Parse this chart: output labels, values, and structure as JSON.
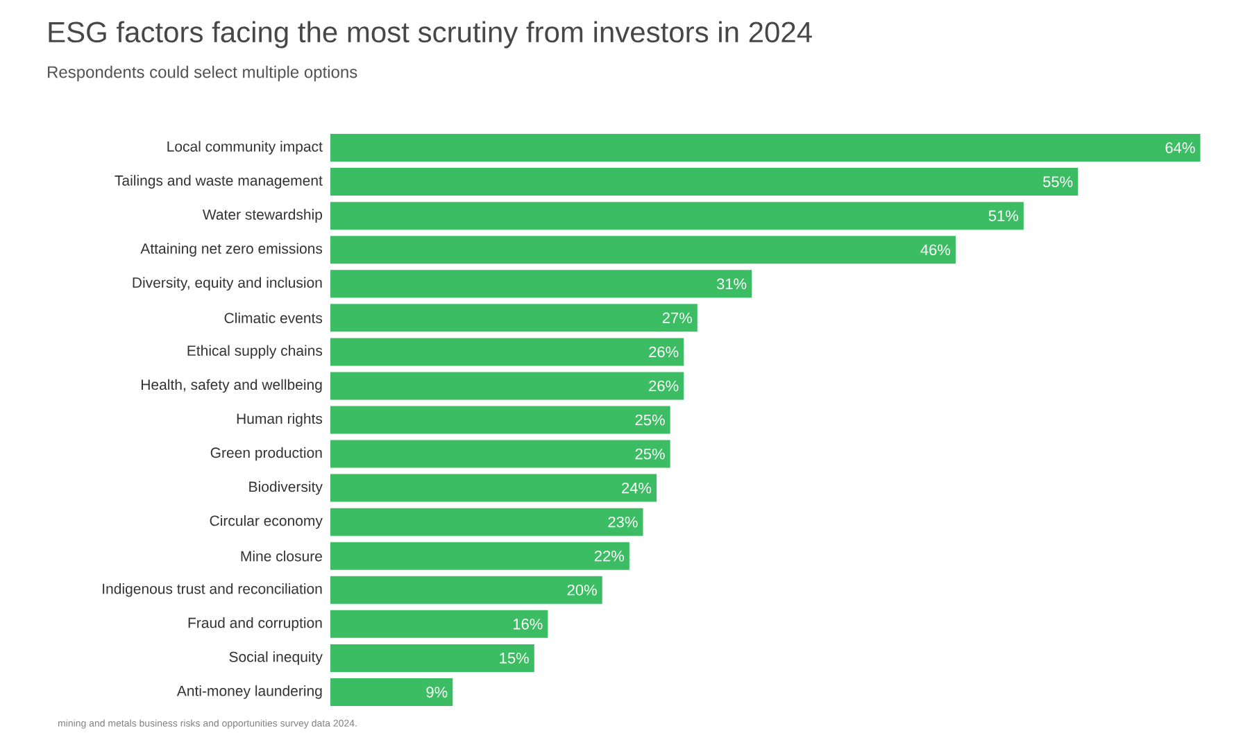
{
  "chart_data": {
    "type": "bar",
    "orientation": "horizontal",
    "title": "ESG factors facing the most scrutiny from investors in 2024",
    "subtitle": "Respondents could select multiple options",
    "annotations": [
      "mining and metals business risks and opportunities survey data 2024."
    ],
    "categories": [
      "Local community impact",
      "Tailings and waste management",
      "Water stewardship",
      "Attaining net zero emissions",
      "Diversity, equity and inclusion",
      "Climatic events",
      "Ethical supply chains",
      "Health, safety and wellbeing",
      "Human rights",
      "Green production",
      "Biodiversity",
      "Circular economy",
      "Mine closure",
      "Indigenous trust and reconciliation",
      "Fraud and corruption",
      "Social inequity",
      "Anti-money laundering"
    ],
    "values": [
      64,
      55,
      51,
      46,
      31,
      27,
      26,
      26,
      25,
      25,
      24,
      23,
      22,
      20,
      16,
      15,
      9
    ],
    "value_labels": [
      "64%",
      "55%",
      "51%",
      "46%",
      "31%",
      "27%",
      "26%",
      "26%",
      "25%",
      "25%",
      "24%",
      "23%",
      "22%",
      "20%",
      "16%",
      "15%",
      "9%"
    ],
    "color": "#3dbd63"
  }
}
